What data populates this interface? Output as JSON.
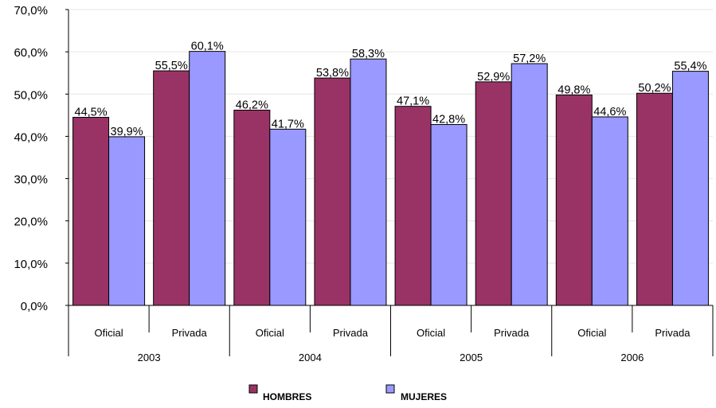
{
  "chart_data": {
    "type": "bar",
    "y_axis": {
      "ticks": [
        "0,0%",
        "10,0%",
        "20,0%",
        "30,0%",
        "40,0%",
        "50,0%",
        "60,0%",
        "70,0%"
      ],
      "ylim": [
        0,
        70
      ],
      "gridlines": true
    },
    "groups": [
      {
        "year": "2003",
        "categories": [
          "Oficial",
          "Privada"
        ]
      },
      {
        "year": "2004",
        "categories": [
          "Oficial",
          "Privada"
        ]
      },
      {
        "year": "2005",
        "categories": [
          "Oficial",
          "Privada"
        ]
      },
      {
        "year": "2006",
        "categories": [
          "Oficial",
          "Privada"
        ]
      }
    ],
    "series": [
      {
        "name": "HOMBRES",
        "color": "#993366",
        "values": [
          44.5,
          55.5,
          46.2,
          53.8,
          47.1,
          52.9,
          49.8,
          50.2
        ],
        "labels": [
          "44,5%",
          "55,5%",
          "46,2%",
          "53,8%",
          "47,1%",
          "52,9%",
          "49,8%",
          "50,2%"
        ]
      },
      {
        "name": "MUJERES",
        "color": "#9999FF",
        "values": [
          39.9,
          60.1,
          41.7,
          58.3,
          42.8,
          57.2,
          44.6,
          55.4
        ],
        "labels": [
          "39,9%",
          "60,1%",
          "41,7%",
          "58,3%",
          "42,8%",
          "57,2%",
          "44,6%",
          "55,4%"
        ]
      }
    ],
    "legend": {
      "placement": "bottom",
      "items": [
        "HOMBRES",
        "MUJERES"
      ]
    }
  }
}
